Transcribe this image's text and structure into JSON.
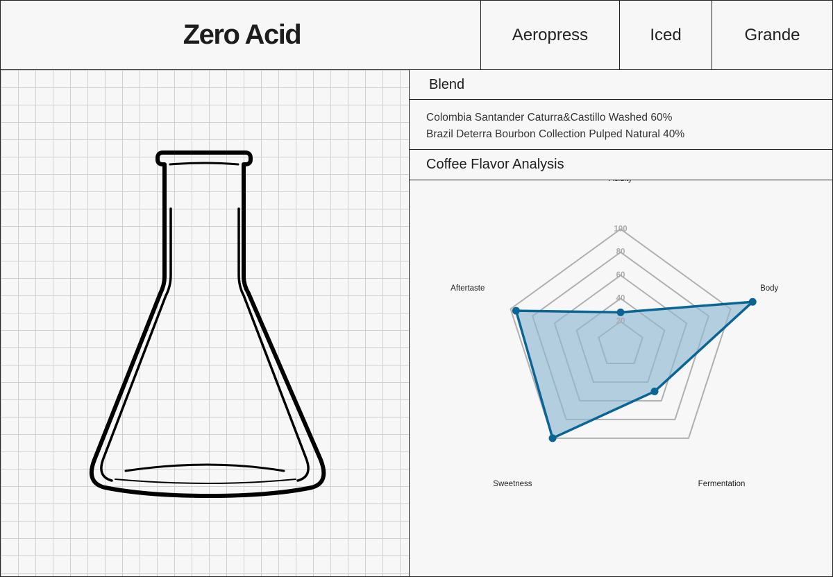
{
  "header": {
    "title": "Zero Acid",
    "tags": [
      "Aeropress",
      "Iced",
      "Grande"
    ]
  },
  "blend": {
    "heading": "Blend",
    "lines": [
      "Colombia Santander Caturra&Castillo Washed 60%",
      "Brazil Deterra Bourbon Collection Pulped Natural 40%"
    ]
  },
  "analysis": {
    "heading": "Coffee Flavor Analysis"
  },
  "colors": {
    "series_stroke": "#0a6494",
    "series_fill": "#8fb8d3",
    "grid": "#b0b0b0"
  },
  "illustration": "erlenmeyer-flask-icon",
  "chart_data": {
    "type": "radar",
    "axes": [
      "Acidity",
      "Body",
      "Fermentation",
      "Sweetness",
      "Aftertaste"
    ],
    "ticks": [
      20,
      40,
      60,
      80,
      100
    ],
    "range": [
      0,
      120
    ],
    "series": [
      {
        "values": [
          28,
          120,
          50,
          100,
          95
        ]
      }
    ]
  }
}
